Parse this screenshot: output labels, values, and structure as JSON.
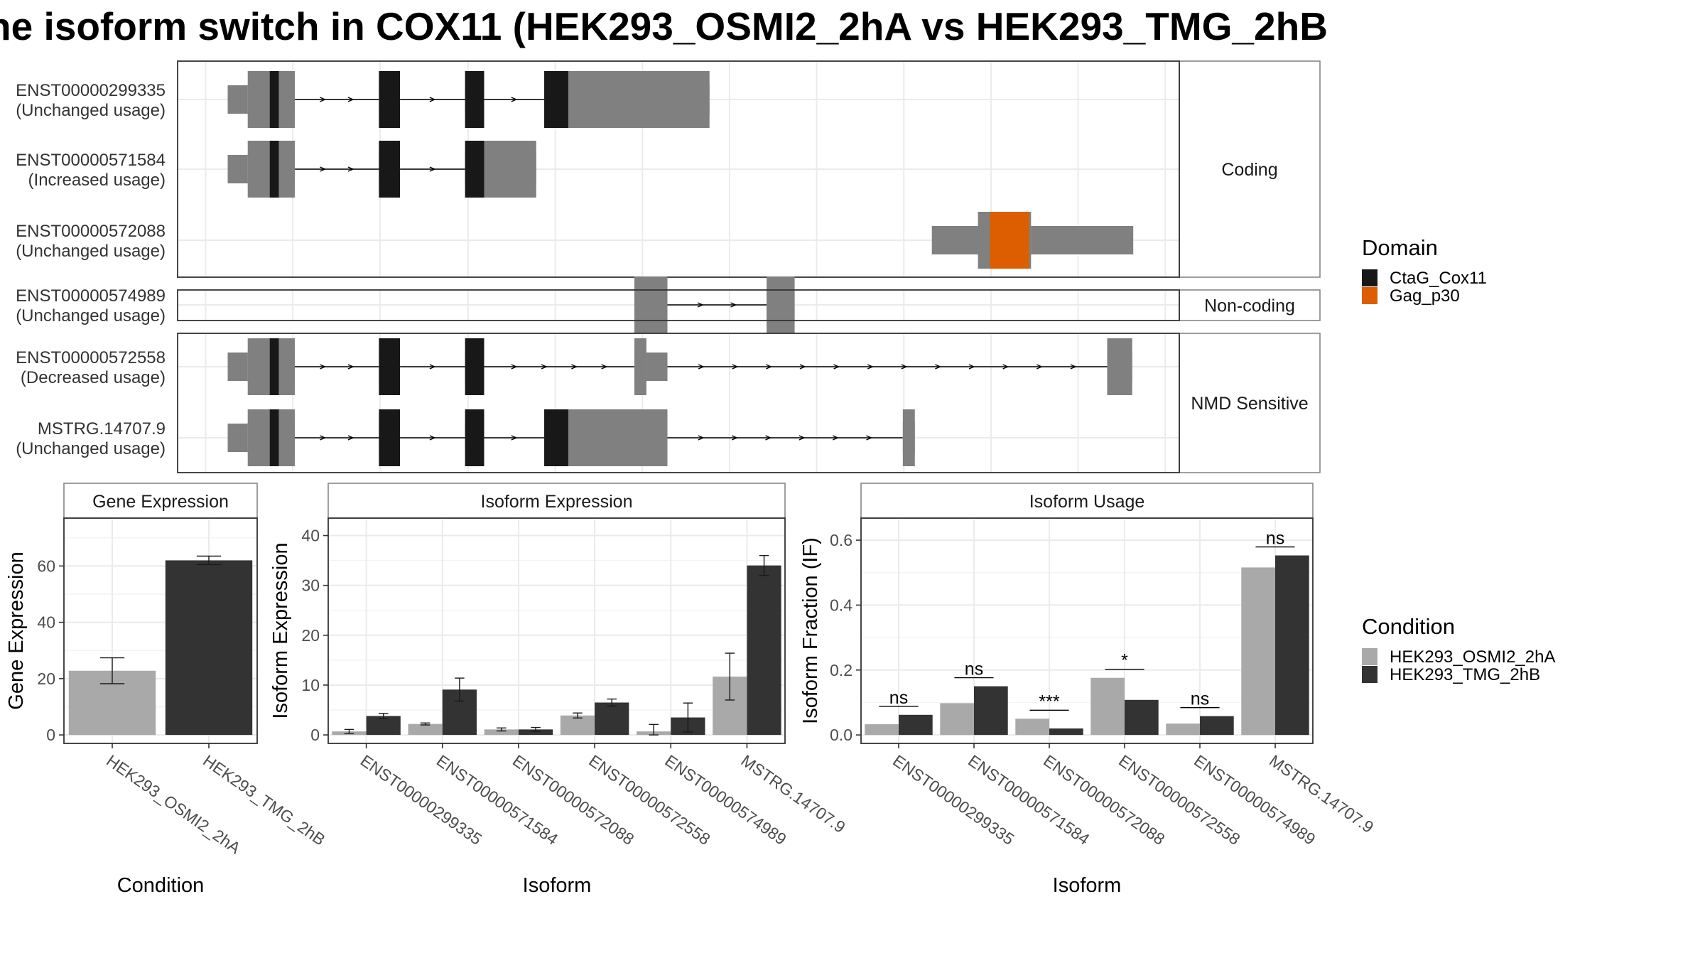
{
  "title": "he isoform switch in COX11 (HEK293_OSMI2_2hA vs HEK293_TMG_2hB",
  "colors": {
    "exon": "#808080",
    "cds": "#181818",
    "gag": "#dd5e00",
    "cond1": "#a9a9a9",
    "cond2": "#333333",
    "grid": "#ebebeb",
    "grid_minor": "#f4f4f4",
    "panel_border": "#333333",
    "strip_border": "#7f7f7f"
  },
  "structure": {
    "groups": [
      {
        "label": "Coding",
        "transcripts": [
          0,
          1,
          2
        ]
      },
      {
        "label": "Non-coding",
        "transcripts": [
          3
        ]
      },
      {
        "label": "NMD Sensitive",
        "transcripts": [
          4,
          5
        ]
      }
    ],
    "transcripts": [
      {
        "id": "ENST00000299335",
        "status": "(Unchanged usage)",
        "exons": [
          [
            0.05,
            0.117
          ],
          [
            0.201,
            0.222
          ],
          [
            0.287,
            0.306
          ],
          [
            0.366,
            0.531
          ]
        ],
        "cds": [
          [
            0.092,
            0.101
          ],
          [
            0.201,
            0.222
          ],
          [
            0.287,
            0.306
          ],
          [
            0.366,
            0.39
          ]
        ],
        "utr_narrow": [
          [
            0.05,
            0.07
          ]
        ],
        "domain": []
      },
      {
        "id": "ENST00000571584",
        "status": "(Increased usage)",
        "exons": [
          [
            0.05,
            0.117
          ],
          [
            0.201,
            0.222
          ],
          [
            0.287,
            0.306
          ],
          [
            0.306,
            0.358
          ]
        ],
        "cds": [
          [
            0.092,
            0.101
          ],
          [
            0.201,
            0.222
          ],
          [
            0.287,
            0.306
          ]
        ],
        "utr_narrow": [
          [
            0.05,
            0.07
          ]
        ],
        "domain": []
      },
      {
        "id": "ENST00000572088",
        "status": "(Unchanged usage)",
        "exons": [
          [
            0.753,
            0.954
          ]
        ],
        "cds": [],
        "utr_narrow": [
          [
            0.753,
            0.799
          ],
          [
            0.852,
            0.954
          ]
        ],
        "domain": [
          [
            0.811,
            0.85
          ]
        ]
      },
      {
        "id": "ENST00000574989",
        "status": "(Unchanged usage)",
        "exons": [
          [
            0.456,
            0.489
          ],
          [
            0.588,
            0.616
          ]
        ],
        "cds": [],
        "utr_narrow": [],
        "domain": []
      },
      {
        "id": "ENST00000572558",
        "status": "(Decreased usage)",
        "exons": [
          [
            0.05,
            0.117
          ],
          [
            0.201,
            0.222
          ],
          [
            0.287,
            0.306
          ],
          [
            0.456,
            0.489
          ],
          [
            0.928,
            0.953
          ]
        ],
        "cds": [
          [
            0.092,
            0.101
          ],
          [
            0.201,
            0.222
          ],
          [
            0.287,
            0.306
          ]
        ],
        "utr_narrow": [
          [
            0.05,
            0.07
          ],
          [
            0.468,
            0.489
          ]
        ],
        "domain": []
      },
      {
        "id": "MSTRG.14707.9",
        "status": "(Unchanged usage)",
        "exons": [
          [
            0.05,
            0.117
          ],
          [
            0.201,
            0.222
          ],
          [
            0.287,
            0.306
          ],
          [
            0.366,
            0.489
          ],
          [
            0.724,
            0.736
          ]
        ],
        "cds": [
          [
            0.092,
            0.101
          ],
          [
            0.201,
            0.222
          ],
          [
            0.287,
            0.306
          ],
          [
            0.366,
            0.39
          ]
        ],
        "utr_narrow": [
          [
            0.05,
            0.07
          ]
        ],
        "domain": []
      }
    ]
  },
  "legend_domain": {
    "title": "Domain",
    "items": [
      {
        "label": "CtaG_Cox11",
        "color": "#181818"
      },
      {
        "label": "Gag_p30",
        "color": "#dd5e00"
      }
    ]
  },
  "legend_condition": {
    "title": "Condition",
    "items": [
      {
        "label": "HEK293_OSMI2_2hA",
        "color": "#a9a9a9"
      },
      {
        "label": "HEK293_TMG_2hB",
        "color": "#333333"
      }
    ]
  },
  "chart_data": [
    {
      "type": "bar",
      "title": "Gene Expression",
      "xlabel": "Condition",
      "ylabel": "Gene Expression",
      "categories": [
        "HEK293_OSMI2_2hA",
        "HEK293_TMG_2hB"
      ],
      "values": [
        22.8,
        62.0
      ],
      "errors": [
        [
          18.2,
          27.4
        ],
        [
          60.5,
          63.5
        ]
      ],
      "ylim": [
        -3,
        77
      ],
      "yticks": [
        0,
        20,
        40,
        60
      ]
    },
    {
      "type": "bar",
      "title": "Isoform Expression",
      "xlabel": "Isoform",
      "ylabel": "Isoform Expression",
      "categories": [
        "ENST00000299335",
        "ENST00000571584",
        "ENST00000572088",
        "ENST00000572558",
        "ENST00000574989",
        "MSTRG.14707.9"
      ],
      "series": [
        {
          "name": "HEK293_OSMI2_2hA",
          "values": [
            0.7,
            2.2,
            1.1,
            3.9,
            0.7,
            11.7
          ],
          "errors": [
            [
              0.3,
              1.1
            ],
            [
              2.0,
              2.4
            ],
            [
              0.8,
              1.4
            ],
            [
              3.4,
              4.4
            ],
            [
              0,
              2.1
            ],
            [
              7.0,
              16.4
            ]
          ]
        },
        {
          "name": "HEK293_TMG_2hB",
          "values": [
            3.8,
            9.1,
            1.1,
            6.5,
            3.5,
            34.0
          ],
          "errors": [
            [
              3.3,
              4.3
            ],
            [
              6.8,
              11.4
            ],
            [
              0.7,
              1.5
            ],
            [
              5.8,
              7.2
            ],
            [
              0.6,
              6.4
            ],
            [
              32.0,
              36.0
            ]
          ]
        }
      ],
      "ylim": [
        -1.7,
        43.5
      ],
      "yticks": [
        0,
        10,
        20,
        30,
        40
      ]
    },
    {
      "type": "bar",
      "title": "Isoform Usage",
      "xlabel": "Isoform",
      "ylabel": "Isoform Fraction (IF)",
      "categories": [
        "ENST00000299335",
        "ENST00000571584",
        "ENST00000572088",
        "ENST00000572558",
        "ENST00000574989",
        "MSTRG.14707.9"
      ],
      "series": [
        {
          "name": "HEK293_OSMI2_2hA",
          "values": [
            0.033,
            0.098,
            0.05,
            0.176,
            0.035,
            0.516
          ]
        },
        {
          "name": "HEK293_TMG_2hB",
          "values": [
            0.062,
            0.15,
            0.02,
            0.108,
            0.058,
            0.553
          ]
        }
      ],
      "significance": [
        "ns",
        "ns",
        "***",
        "*",
        "ns",
        "ns"
      ],
      "ylim": [
        -0.026,
        0.668
      ],
      "yticks": [
        "0.0",
        "0.2",
        "0.4",
        "0.6"
      ]
    }
  ]
}
